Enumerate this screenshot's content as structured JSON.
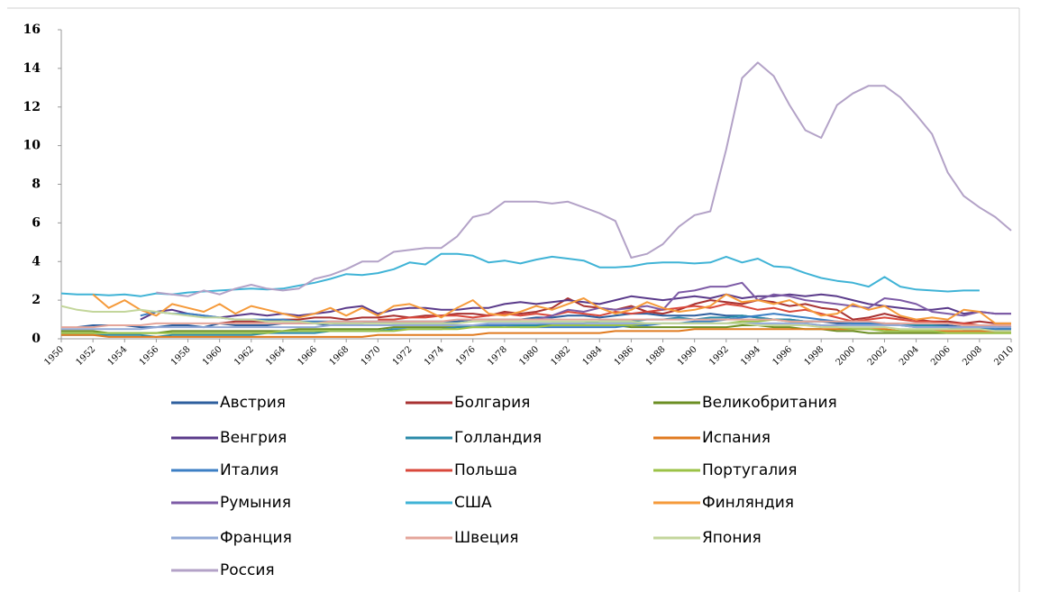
{
  "chart_data": {
    "type": "line",
    "x": [
      1950,
      1951,
      1952,
      1953,
      1954,
      1955,
      1956,
      1957,
      1958,
      1959,
      1960,
      1961,
      1962,
      1963,
      1964,
      1965,
      1966,
      1967,
      1968,
      1969,
      1970,
      1971,
      1972,
      1973,
      1974,
      1975,
      1976,
      1977,
      1978,
      1979,
      1980,
      1981,
      1982,
      1983,
      1984,
      1985,
      1986,
      1987,
      1988,
      1989,
      1990,
      1991,
      1992,
      1993,
      1994,
      1995,
      1996,
      1997,
      1998,
      1999,
      2000,
      2001,
      2002,
      2003,
      2004,
      2005,
      2006,
      2007,
      2008,
      2009,
      2010
    ],
    "xlim": [
      1950,
      2010
    ],
    "xticks": [
      1950,
      1952,
      1954,
      1956,
      1958,
      1960,
      1962,
      1964,
      1966,
      1968,
      1970,
      1972,
      1974,
      1976,
      1978,
      1980,
      1982,
      1984,
      1986,
      1988,
      1990,
      1992,
      1994,
      1996,
      1998,
      2000,
      2002,
      2004,
      2006,
      2008,
      2010
    ],
    "ylim": [
      0,
      16
    ],
    "yticks": [
      0,
      2,
      4,
      6,
      8,
      10,
      12,
      14,
      16
    ],
    "series": [
      {
        "name": "Австрия",
        "color": "#2e5f9e",
        "values": [
          null,
          0.6,
          0.7,
          0.7,
          0.7,
          0.6,
          0.6,
          0.7,
          0.7,
          0.6,
          0.8,
          0.7,
          0.7,
          0.7,
          0.8,
          0.8,
          0.8,
          0.7,
          0.8,
          0.8,
          0.9,
          0.9,
          0.9,
          0.9,
          0.9,
          0.9,
          1.0,
          1.0,
          1.0,
          1.0,
          1.1,
          1.1,
          1.2,
          1.2,
          1.1,
          1.2,
          1.3,
          1.3,
          1.2,
          1.2,
          1.2,
          1.3,
          1.2,
          1.2,
          1.1,
          1.0,
          1.0,
          0.9,
          0.9,
          0.8,
          0.8,
          0.8,
          0.8,
          0.7,
          0.7,
          0.7,
          0.7,
          0.6,
          0.6,
          0.6,
          0.5
        ]
      },
      {
        "name": "Болгария",
        "color": "#a83232",
        "values": [
          null,
          null,
          null,
          null,
          null,
          null,
          null,
          null,
          null,
          null,
          0.8,
          0.9,
          0.9,
          0.9,
          1.0,
          1.0,
          1.1,
          1.1,
          1.0,
          1.1,
          1.1,
          1.2,
          1.1,
          1.2,
          1.2,
          1.3,
          1.3,
          1.2,
          1.4,
          1.3,
          1.4,
          1.6,
          2.1,
          1.7,
          1.6,
          1.5,
          1.7,
          1.4,
          1.3,
          1.5,
          1.8,
          2.0,
          1.9,
          1.8,
          2.0,
          1.9,
          1.7,
          1.8,
          1.6,
          1.5,
          1.0,
          1.1,
          1.3,
          1.1,
          1.0,
          0.9,
          0.9,
          0.8,
          0.9,
          0.8,
          0.8
        ]
      },
      {
        "name": "Великобритания",
        "color": "#6b8e23",
        "values": [
          0.4,
          0.4,
          0.4,
          0.3,
          0.3,
          0.3,
          0.3,
          0.4,
          0.4,
          0.4,
          0.4,
          0.4,
          0.4,
          0.4,
          0.4,
          0.5,
          0.5,
          0.5,
          0.5,
          0.5,
          0.5,
          0.6,
          0.6,
          0.6,
          0.6,
          0.6,
          0.7,
          0.7,
          0.7,
          0.7,
          0.7,
          0.7,
          0.7,
          0.7,
          0.7,
          0.7,
          0.6,
          0.6,
          0.6,
          0.6,
          0.6,
          0.6,
          0.6,
          0.7,
          0.7,
          0.6,
          0.6,
          0.5,
          0.5,
          0.4,
          0.4,
          0.3,
          0.3,
          0.3,
          0.3,
          0.3,
          0.3,
          0.3,
          0.3,
          0.3,
          0.3
        ]
      },
      {
        "name": "Венгрия",
        "color": "#5a3a8a",
        "values": [
          null,
          null,
          null,
          null,
          null,
          1.0,
          1.4,
          1.5,
          1.3,
          1.2,
          1.1,
          1.2,
          1.3,
          1.2,
          1.3,
          1.2,
          1.3,
          1.4,
          1.6,
          1.7,
          1.3,
          1.5,
          1.6,
          1.6,
          1.5,
          1.5,
          1.6,
          1.6,
          1.8,
          1.9,
          1.8,
          1.9,
          2.0,
          1.9,
          1.8,
          2.0,
          2.2,
          2.1,
          2.0,
          2.1,
          2.2,
          2.1,
          2.3,
          2.1,
          2.2,
          2.2,
          2.3,
          2.2,
          2.3,
          2.2,
          2.0,
          1.8,
          1.7,
          1.6,
          1.5,
          1.5,
          1.6,
          1.3,
          1.4,
          1.3,
          1.3
        ]
      },
      {
        "name": "Голландия",
        "color": "#2a8aa8",
        "values": [
          0.2,
          0.2,
          0.2,
          0.2,
          0.2,
          0.2,
          0.1,
          0.2,
          0.2,
          0.2,
          0.2,
          0.2,
          0.2,
          0.3,
          0.3,
          0.3,
          0.3,
          0.4,
          0.4,
          0.4,
          0.4,
          0.5,
          0.5,
          0.5,
          0.5,
          0.6,
          0.6,
          0.6,
          0.7,
          0.7,
          0.7,
          0.8,
          0.8,
          0.8,
          0.9,
          0.9,
          0.9,
          1.0,
          1.0,
          1.1,
          1.0,
          1.1,
          1.1,
          1.2,
          1.1,
          1.0,
          1.0,
          0.9,
          0.9,
          0.9,
          0.8,
          0.8,
          0.8,
          0.7,
          0.7,
          0.7,
          0.6,
          0.6,
          0.6,
          0.5,
          0.5
        ]
      },
      {
        "name": "Испания",
        "color": "#e07a1f",
        "values": [
          0.2,
          0.2,
          0.2,
          0.1,
          0.1,
          0.1,
          0.1,
          0.1,
          0.1,
          0.1,
          0.1,
          0.1,
          0.1,
          0.1,
          0.1,
          0.1,
          0.1,
          0.1,
          0.1,
          0.1,
          0.2,
          0.2,
          0.2,
          0.2,
          0.2,
          0.2,
          0.2,
          0.3,
          0.3,
          0.3,
          0.3,
          0.3,
          0.3,
          0.3,
          0.3,
          0.4,
          0.4,
          0.4,
          0.4,
          0.4,
          0.5,
          0.5,
          0.5,
          0.5,
          0.5,
          0.5,
          0.5,
          0.5,
          0.5,
          0.5,
          0.5,
          0.5,
          0.5,
          0.4,
          0.4,
          0.4,
          0.4,
          0.4,
          0.4,
          0.4,
          0.4
        ]
      },
      {
        "name": "Италия",
        "color": "#3c7fc4",
        "values": [
          null,
          null,
          null,
          null,
          null,
          1.2,
          1.4,
          1.3,
          1.3,
          1.2,
          1.1,
          1.0,
          1.0,
          1.0,
          1.0,
          0.9,
          0.9,
          0.9,
          0.9,
          0.9,
          0.9,
          0.8,
          0.8,
          0.8,
          0.8,
          0.7,
          0.7,
          0.7,
          0.7,
          0.6,
          0.6,
          0.6,
          0.6,
          0.6,
          0.6,
          0.6,
          0.7,
          0.7,
          0.8,
          0.8,
          0.9,
          0.9,
          1.0,
          1.1,
          1.2,
          1.3,
          1.2,
          1.1,
          1.0,
          0.9,
          0.8,
          0.8,
          0.7,
          0.7,
          0.6,
          0.6,
          0.6,
          0.5,
          0.5,
          0.5,
          0.5
        ]
      },
      {
        "name": "Польша",
        "color": "#d9483b",
        "values": [
          null,
          null,
          null,
          null,
          null,
          null,
          null,
          null,
          null,
          null,
          null,
          null,
          null,
          null,
          null,
          null,
          null,
          null,
          null,
          null,
          1.0,
          1.0,
          1.1,
          1.1,
          1.2,
          1.2,
          1.1,
          1.2,
          1.3,
          1.2,
          1.3,
          1.2,
          1.4,
          1.3,
          1.2,
          1.4,
          1.3,
          1.4,
          1.5,
          1.6,
          1.7,
          1.6,
          1.8,
          1.7,
          1.5,
          1.6,
          1.4,
          1.5,
          1.3,
          1.1,
          0.9,
          1.0,
          1.1,
          1.0,
          0.9,
          0.9,
          0.8,
          0.8,
          0.7,
          0.7,
          0.6
        ]
      },
      {
        "name": "Португалия",
        "color": "#9bc247",
        "values": [
          0.3,
          0.3,
          0.3,
          0.3,
          0.3,
          0.3,
          0.3,
          0.3,
          0.3,
          0.3,
          0.3,
          0.3,
          0.3,
          0.3,
          0.4,
          0.4,
          0.4,
          0.4,
          0.4,
          0.4,
          0.4,
          0.4,
          0.5,
          0.5,
          0.5,
          0.5,
          0.6,
          0.6,
          0.6,
          0.6,
          0.6,
          0.7,
          0.7,
          0.7,
          0.7,
          0.7,
          0.7,
          0.8,
          0.8,
          0.8,
          0.8,
          0.8,
          0.8,
          0.9,
          0.9,
          1.0,
          0.9,
          0.8,
          0.7,
          0.6,
          0.5,
          0.5,
          0.4,
          0.4,
          0.4,
          0.4,
          0.3,
          0.3,
          0.3,
          0.3,
          0.3
        ]
      },
      {
        "name": "Румыния",
        "color": "#7d5ba6",
        "values": [
          null,
          null,
          null,
          null,
          null,
          null,
          null,
          null,
          null,
          null,
          null,
          null,
          null,
          null,
          null,
          null,
          null,
          null,
          null,
          null,
          null,
          null,
          null,
          null,
          null,
          null,
          null,
          null,
          null,
          null,
          1.0,
          1.2,
          1.5,
          1.4,
          1.6,
          1.5,
          1.6,
          1.7,
          1.5,
          2.4,
          2.5,
          2.7,
          2.7,
          2.9,
          2.0,
          2.3,
          2.2,
          2.0,
          1.9,
          1.8,
          1.7,
          1.6,
          2.1,
          2.0,
          1.8,
          1.4,
          1.3,
          1.2,
          1.4,
          1.3,
          1.3
        ]
      },
      {
        "name": "США",
        "color": "#3fb3d6",
        "values": [
          2.35,
          2.3,
          2.3,
          2.25,
          2.3,
          2.2,
          2.35,
          2.3,
          2.4,
          2.45,
          2.5,
          2.55,
          2.6,
          2.55,
          2.6,
          2.75,
          2.9,
          3.1,
          3.35,
          3.3,
          3.4,
          3.6,
          3.95,
          3.85,
          4.4,
          4.4,
          4.3,
          3.95,
          4.05,
          3.9,
          4.1,
          4.25,
          4.15,
          4.05,
          3.7,
          3.7,
          3.75,
          3.9,
          3.95,
          3.95,
          3.9,
          3.95,
          4.25,
          3.95,
          4.15,
          3.75,
          3.7,
          3.4,
          3.15,
          3.0,
          2.9,
          2.7,
          3.2,
          2.7,
          2.55,
          2.5,
          2.45,
          2.5,
          2.5,
          null,
          null
        ]
      },
      {
        "name": "Финляндия",
        "color": "#f59a3a",
        "values": [
          null,
          null,
          2.3,
          1.6,
          2.0,
          1.5,
          1.2,
          1.8,
          1.6,
          1.4,
          1.8,
          1.3,
          1.7,
          1.5,
          1.3,
          1.1,
          1.3,
          1.6,
          1.2,
          1.6,
          1.2,
          1.7,
          1.8,
          1.5,
          1.1,
          1.6,
          2.0,
          1.3,
          1.2,
          1.4,
          1.7,
          1.5,
          1.8,
          2.1,
          1.6,
          1.3,
          1.5,
          1.9,
          1.6,
          1.4,
          1.5,
          1.7,
          2.3,
          1.9,
          2.0,
          1.8,
          2.0,
          1.6,
          1.2,
          1.3,
          1.8,
          1.5,
          1.7,
          1.2,
          1.0,
          1.1,
          1.0,
          1.5,
          1.4,
          0.8,
          0.8
        ]
      },
      {
        "name": "Франция",
        "color": "#92a9d6",
        "values": [
          0.5,
          0.5,
          0.5,
          0.5,
          0.5,
          0.5,
          0.6,
          0.6,
          0.6,
          0.6,
          0.6,
          0.6,
          0.6,
          0.6,
          0.6,
          0.6,
          0.6,
          0.7,
          0.7,
          0.7,
          0.7,
          0.7,
          0.7,
          0.7,
          0.7,
          0.7,
          0.7,
          0.8,
          0.8,
          0.8,
          0.8,
          0.8,
          0.8,
          0.8,
          0.8,
          0.8,
          0.8,
          0.8,
          0.8,
          0.8,
          0.8,
          0.8,
          0.8,
          0.8,
          0.8,
          0.8,
          0.8,
          0.8,
          0.7,
          0.7,
          0.7,
          0.7,
          0.7,
          0.7,
          0.6,
          0.6,
          0.6,
          0.6,
          0.6,
          0.6,
          0.6
        ]
      },
      {
        "name": "Швеция",
        "color": "#e4a59a",
        "values": [
          0.6,
          0.6,
          0.6,
          0.7,
          0.7,
          0.7,
          0.8,
          0.8,
          0.8,
          0.8,
          0.8,
          0.8,
          0.8,
          0.8,
          0.8,
          0.8,
          0.8,
          0.9,
          0.9,
          0.9,
          0.9,
          0.9,
          0.9,
          0.9,
          0.9,
          1.0,
          1.0,
          1.0,
          1.0,
          1.0,
          1.0,
          1.0,
          1.0,
          1.0,
          1.0,
          1.0,
          1.0,
          1.0,
          1.0,
          1.0,
          1.0,
          1.0,
          1.0,
          1.0,
          1.0,
          1.0,
          0.9,
          0.9,
          0.9,
          0.9,
          0.9,
          0.9,
          0.8,
          0.8,
          0.8,
          0.8,
          0.8,
          0.7,
          0.7,
          0.7,
          0.7
        ]
      },
      {
        "name": "Япония",
        "color": "#c3d69b",
        "values": [
          1.7,
          1.5,
          1.4,
          1.4,
          1.4,
          1.5,
          1.4,
          1.3,
          1.2,
          1.1,
          1.1,
          1.0,
          1.0,
          0.9,
          0.9,
          0.9,
          0.8,
          0.8,
          0.8,
          0.8,
          0.8,
          0.8,
          0.8,
          0.8,
          0.8,
          0.8,
          0.9,
          0.9,
          0.9,
          0.9,
          0.9,
          0.9,
          0.9,
          0.9,
          0.9,
          0.9,
          0.9,
          0.8,
          0.8,
          0.8,
          0.8,
          0.8,
          0.8,
          0.8,
          0.7,
          0.7,
          0.7,
          0.7,
          0.6,
          0.6,
          0.6,
          0.6,
          0.6,
          0.5,
          0.5,
          0.5,
          0.5,
          0.5,
          0.5,
          0.4,
          0.4
        ]
      },
      {
        "name": "Россия",
        "color": "#b3a2c7",
        "values": [
          null,
          null,
          null,
          null,
          null,
          null,
          2.4,
          2.3,
          2.2,
          2.5,
          2.3,
          2.6,
          2.8,
          2.6,
          2.5,
          2.6,
          3.1,
          3.3,
          3.6,
          4.0,
          4.0,
          4.5,
          4.6,
          4.7,
          4.7,
          5.3,
          6.3,
          6.5,
          7.1,
          7.1,
          7.1,
          7.0,
          7.1,
          6.8,
          6.5,
          6.1,
          4.2,
          4.4,
          4.9,
          5.8,
          6.4,
          6.6,
          9.8,
          13.5,
          14.3,
          13.6,
          12.1,
          10.8,
          10.4,
          12.1,
          12.7,
          13.1,
          13.1,
          12.5,
          11.6,
          10.6,
          8.6,
          7.4,
          6.8,
          6.3,
          5.6
        ]
      }
    ]
  }
}
